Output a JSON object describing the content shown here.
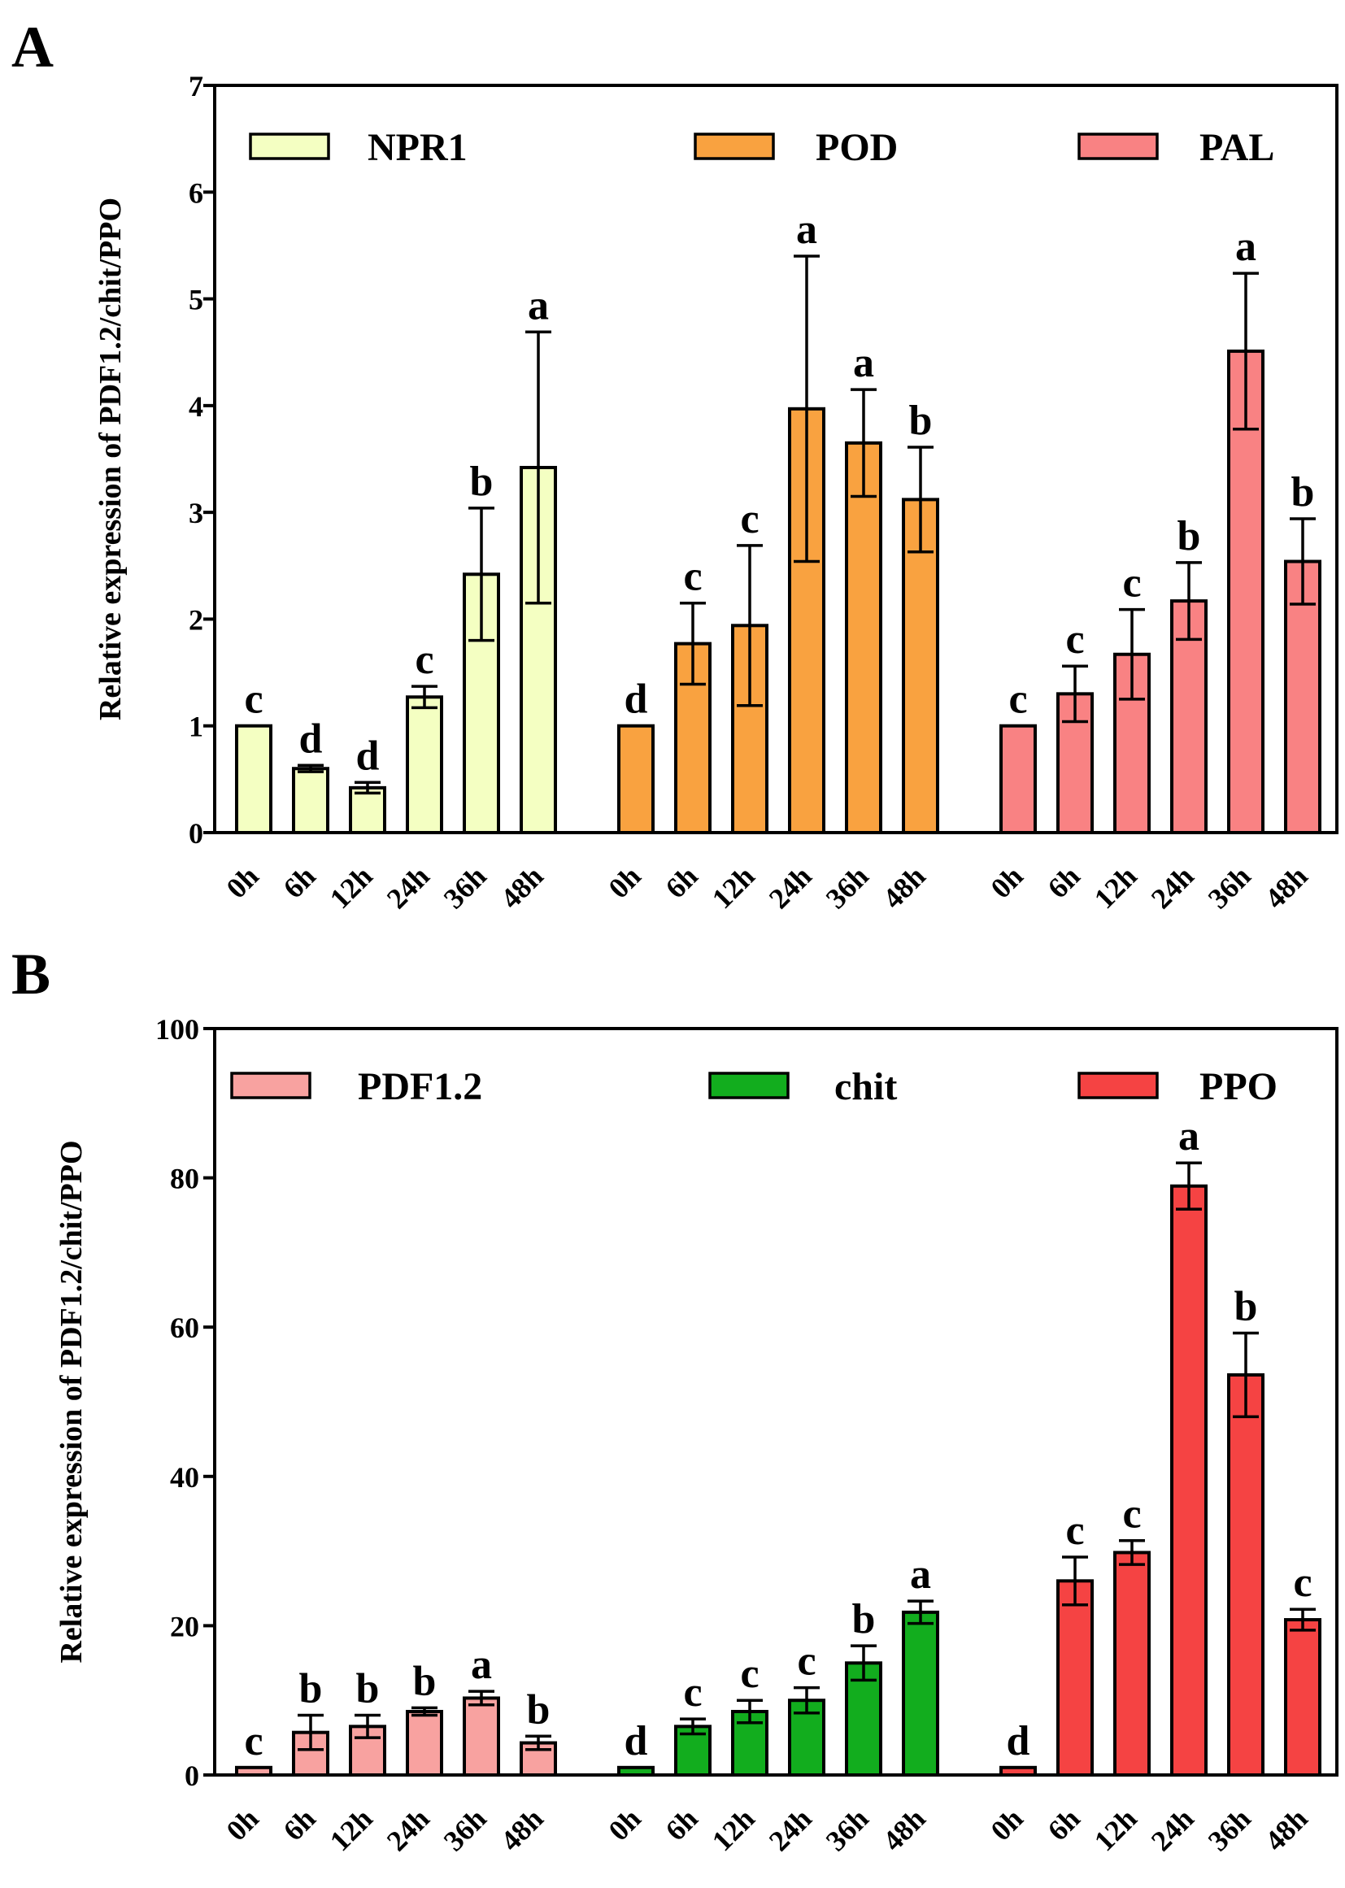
{
  "chart_data": [
    {
      "panel": "A",
      "type": "bar",
      "ylabel": "Relative expression of  PDF1.2/chit/PPO",
      "ylim": [
        0,
        7
      ],
      "yticks": [
        0,
        1,
        2,
        3,
        4,
        5,
        6,
        7
      ],
      "legend_position": "top",
      "categories": [
        "0h",
        "6h",
        "12h",
        "24h",
        "36h",
        "48h"
      ],
      "series": [
        {
          "name": "NPR1",
          "color": "#f4ffc2",
          "values": [
            1.0,
            0.6,
            0.42,
            1.27,
            2.42,
            3.42
          ],
          "errors": [
            0.0,
            0.03,
            0.05,
            0.1,
            0.62,
            1.27
          ],
          "letters": [
            "c",
            "d",
            "d",
            "c",
            "b",
            "a"
          ]
        },
        {
          "name": "POD",
          "color": "#f9a240",
          "values": [
            1.0,
            1.77,
            1.94,
            3.97,
            3.65,
            3.12
          ],
          "errors": [
            0.0,
            0.38,
            0.75,
            1.43,
            0.5,
            0.49
          ],
          "letters": [
            "d",
            "c",
            "c",
            "a",
            "a",
            "b"
          ]
        },
        {
          "name": "PAL",
          "color": "#f98283",
          "values": [
            1.0,
            1.3,
            1.67,
            2.17,
            4.51,
            2.54
          ],
          "errors": [
            0.0,
            0.26,
            0.42,
            0.36,
            0.73,
            0.4
          ],
          "letters": [
            "c",
            "c",
            "c",
            "b",
            "a",
            "b"
          ]
        }
      ]
    },
    {
      "panel": "B",
      "type": "bar",
      "ylabel": "Relative expression of  PDF1.2/chit/PPO",
      "ylim": [
        0,
        100
      ],
      "yticks": [
        0,
        20,
        40,
        60,
        80,
        100
      ],
      "legend_position": "top",
      "categories": [
        "0h",
        "6h",
        "12h",
        "24h",
        "36h",
        "48h"
      ],
      "series": [
        {
          "name": "PDF1.2",
          "color": "#f8a2a0",
          "values": [
            1.0,
            5.7,
            6.5,
            8.5,
            10.3,
            4.3
          ],
          "errors": [
            0.0,
            2.3,
            1.5,
            0.5,
            0.9,
            0.9
          ],
          "letters": [
            "c",
            "b",
            "b",
            "b",
            "a",
            "b"
          ]
        },
        {
          "name": "chit",
          "color": "#12ad1e",
          "values": [
            1.0,
            6.5,
            8.5,
            10.0,
            15.0,
            21.8
          ],
          "errors": [
            0.0,
            1.0,
            1.5,
            1.7,
            2.3,
            1.5
          ],
          "letters": [
            "d",
            "c",
            "c",
            "c",
            "b",
            "a"
          ]
        },
        {
          "name": "PPO",
          "color": "#f54343",
          "values": [
            1.0,
            26.0,
            29.8,
            78.9,
            53.6,
            20.8
          ],
          "errors": [
            0.0,
            3.2,
            1.6,
            3.1,
            5.6,
            1.4
          ],
          "letters": [
            "d",
            "c",
            "c",
            "a",
            "b",
            "c"
          ]
        }
      ]
    }
  ]
}
